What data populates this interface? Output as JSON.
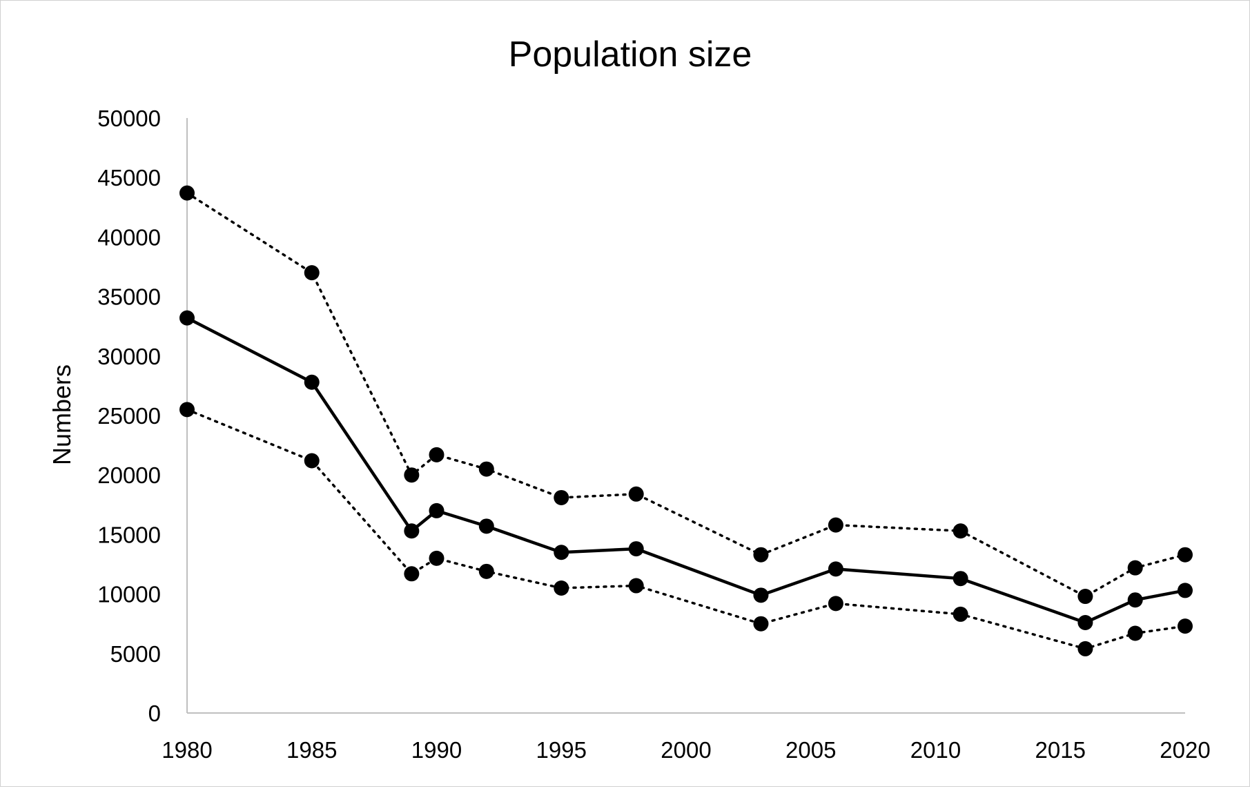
{
  "chart_data": {
    "type": "line",
    "title": "Population size",
    "xlabel": "",
    "ylabel": "Numbers",
    "x": [
      1980,
      1985,
      1989,
      1990,
      1992,
      1995,
      1998,
      2003,
      2006,
      2011,
      2016,
      2018,
      2020
    ],
    "x_ticks": [
      "1980",
      "1985",
      "1990",
      "1995",
      "2000",
      "2005",
      "2010",
      "2015",
      "2020"
    ],
    "y_ticks": [
      "0",
      "5000",
      "10000",
      "15000",
      "20000",
      "25000",
      "30000",
      "35000",
      "40000",
      "45000",
      "50000"
    ],
    "xlim": [
      1980,
      2020
    ],
    "ylim": [
      0,
      50000
    ],
    "grid": false,
    "legend": "none",
    "series": [
      {
        "style": "dotted",
        "color": "#000000",
        "values": [
          43700,
          37000,
          20000,
          21700,
          20500,
          18100,
          18400,
          13300,
          15800,
          15300,
          9800,
          12200,
          13300
        ]
      },
      {
        "style": "solid",
        "color": "#000000",
        "values": [
          33200,
          27800,
          15300,
          17000,
          15700,
          13500,
          13800,
          9900,
          12100,
          11300,
          7600,
          9500,
          10300
        ]
      },
      {
        "style": "dotted",
        "color": "#000000",
        "values": [
          25500,
          21200,
          11700,
          13000,
          11900,
          10500,
          10700,
          7500,
          9200,
          8300,
          5400,
          6700,
          7300
        ]
      }
    ]
  }
}
